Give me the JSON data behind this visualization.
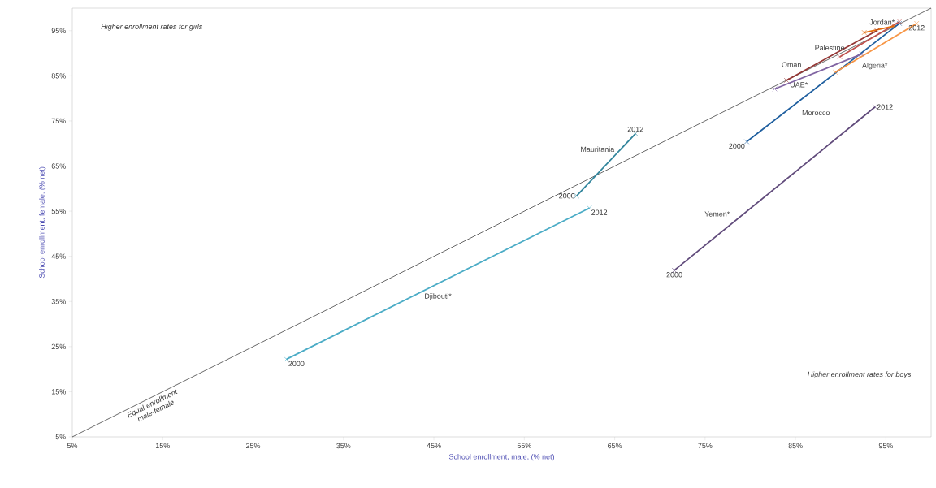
{
  "chart_data": {
    "type": "line",
    "xlabel": "School enrollment, male, (% net)",
    "ylabel": "School enrollment, female, (% net)",
    "xlim": [
      5,
      100
    ],
    "ylim": [
      5,
      100
    ],
    "xticks": [
      {
        "value": 5,
        "label": "5%"
      },
      {
        "value": 15,
        "label": "15%"
      },
      {
        "value": 25,
        "label": "25%"
      },
      {
        "value": 35,
        "label": "35%"
      },
      {
        "value": 45,
        "label": "45%"
      },
      {
        "value": 55,
        "label": "55%"
      },
      {
        "value": 65,
        "label": "65%"
      },
      {
        "value": 75,
        "label": "75%"
      },
      {
        "value": 85,
        "label": "85%"
      },
      {
        "value": 95,
        "label": "95%"
      }
    ],
    "yticks": [
      {
        "value": 5,
        "label": "5%"
      },
      {
        "value": 15,
        "label": "15%"
      },
      {
        "value": 25,
        "label": "25%"
      },
      {
        "value": 35,
        "label": "35%"
      },
      {
        "value": 45,
        "label": "45%"
      },
      {
        "value": 55,
        "label": "55%"
      },
      {
        "value": 65,
        "label": "65%"
      },
      {
        "value": 75,
        "label": "75%"
      },
      {
        "value": 85,
        "label": "85%"
      },
      {
        "value": 95,
        "label": "95%"
      }
    ],
    "grid": false,
    "marker": "cross",
    "series": [
      {
        "type": "line",
        "marker": "none",
        "color": "#000000",
        "x": [
          5,
          100
        ],
        "values": [
          5,
          100
        ]
      },
      {
        "name": "Djibouti*",
        "color": "#4bacc6",
        "x": [
          28.7,
          62.2
        ],
        "values": [
          22.2,
          55.7
        ]
      },
      {
        "name": "Mauritania",
        "color": "#31859c",
        "x": [
          60.8,
          67.3
        ],
        "values": [
          58.4,
          72.2
        ]
      },
      {
        "name": "Yemen*",
        "color": "#5f497a",
        "x": [
          71.6,
          93.8
        ],
        "values": [
          41.9,
          78.1
        ]
      },
      {
        "name": "Morocco",
        "color": "#1f5f9f",
        "x": [
          79.6,
          96.5
        ],
        "values": [
          70.4,
          96.6
        ]
      },
      {
        "name": "UAE*",
        "color": "#8064a2",
        "x": [
          82.7,
          92.3
        ],
        "values": [
          82.1,
          89.8
        ]
      },
      {
        "name": "Oman",
        "color": "#943634",
        "x": [
          84,
          94
        ],
        "values": [
          84,
          95
        ]
      },
      {
        "name": "Palestine",
        "color": "#c0504d",
        "x": [
          89.9,
          96.5
        ],
        "values": [
          89.2,
          97
        ]
      },
      {
        "name": "Jordan*",
        "color": "#e46c0a",
        "x": [
          92.6,
          95.9
        ],
        "values": [
          94.6,
          96
        ]
      },
      {
        "name": "Algeria*",
        "color": "#f79646",
        "x": [
          89.4,
          98.4
        ],
        "values": [
          85.8,
          96.6
        ]
      }
    ],
    "annotations": [
      "Higher enrollment rates for girls",
      "Higher enrollment rates for boys",
      "Equal enrollment male-female",
      {
        "text": "2000",
        "x": 28.7,
        "y": 22.2
      },
      {
        "text": "2012",
        "x": 62.2,
        "y": 55.7
      },
      {
        "text": "2000",
        "x": 60.8,
        "y": 58.4
      },
      {
        "text": "2012",
        "x": 67.3,
        "y": 72.2
      },
      {
        "text": "2000",
        "x": 71.6,
        "y": 41.9
      },
      {
        "text": "2012",
        "x": 93.8,
        "y": 78.1
      },
      {
        "text": "2000",
        "x": 79.6,
        "y": 70.4
      },
      {
        "text": "2012",
        "x": 98.4,
        "y": 96.6
      }
    ]
  }
}
